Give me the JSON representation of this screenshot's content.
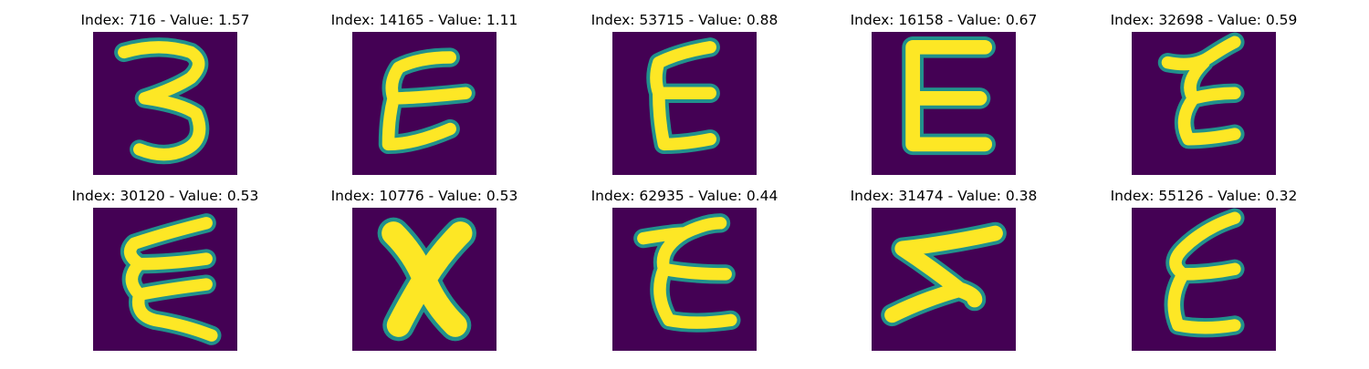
{
  "figure": {
    "colors": {
      "background": "#440154",
      "stroke_edge": "#21918c",
      "stroke_core": "#fde725"
    },
    "panels": [
      {
        "title": "Index: 716 - Value: 1.57",
        "glyph": "3"
      },
      {
        "title": "Index: 14165 - Value: 1.11",
        "glyph": "E"
      },
      {
        "title": "Index: 53715 - Value: 0.88",
        "glyph": "E"
      },
      {
        "title": "Index: 16158 - Value: 0.67",
        "glyph": "E"
      },
      {
        "title": "Index: 32698 - Value: 0.59",
        "glyph": "Z"
      },
      {
        "title": "Index: 30120 - Value: 0.53",
        "glyph": "E"
      },
      {
        "title": "Index: 10776 - Value: 0.53",
        "glyph": "X"
      },
      {
        "title": "Index: 62935 - Value: 0.44",
        "glyph": "E"
      },
      {
        "title": "Index: 31474 - Value: 0.38",
        "glyph": "Z"
      },
      {
        "title": "Index: 55126 - Value: 0.32",
        "glyph": "E"
      }
    ]
  }
}
